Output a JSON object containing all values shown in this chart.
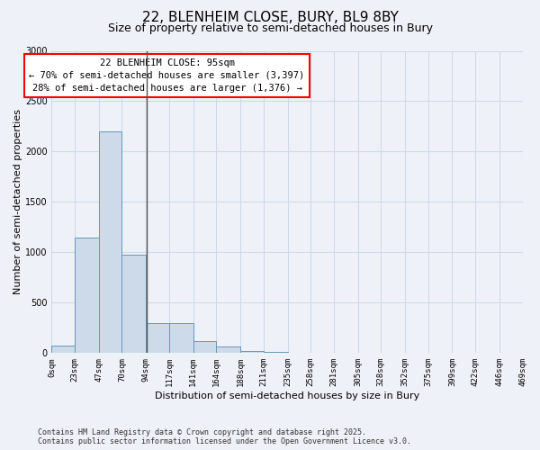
{
  "title_line1": "22, BLENHEIM CLOSE, BURY, BL9 8BY",
  "title_line2": "Size of property relative to semi-detached houses in Bury",
  "xlabel": "Distribution of semi-detached houses by size in Bury",
  "ylabel": "Number of semi-detached properties",
  "annotation_line1": "22 BLENHEIM CLOSE: 95sqm",
  "annotation_line2": "← 70% of semi-detached houses are smaller (3,397)",
  "annotation_line3": "28% of semi-detached houses are larger (1,376) →",
  "property_size": 95,
  "bin_edges": [
    0,
    23,
    47,
    70,
    94,
    117,
    141,
    164,
    188,
    211,
    235,
    258,
    281,
    305,
    328,
    352,
    375,
    399,
    422,
    446,
    469
  ],
  "bar_heights": [
    75,
    1150,
    2200,
    975,
    300,
    300,
    120,
    65,
    25,
    10,
    5,
    2,
    1,
    0,
    0,
    0,
    0,
    0,
    0,
    0
  ],
  "bar_face_color": "#ccdaea",
  "bar_edge_color": "#6699bb",
  "vline_color": "#555555",
  "grid_color": "#d0d8e8",
  "background_color": "#eef2f8",
  "plot_bg_color": "#eef2f8",
  "ylim": [
    0,
    3000
  ],
  "yticks": [
    0,
    500,
    1000,
    1500,
    2000,
    2500,
    3000
  ],
  "tick_labels": [
    "0sqm",
    "23sqm",
    "47sqm",
    "70sqm",
    "94sqm",
    "117sqm",
    "141sqm",
    "164sqm",
    "188sqm",
    "211sqm",
    "235sqm",
    "258sqm",
    "281sqm",
    "305sqm",
    "328sqm",
    "352sqm",
    "375sqm",
    "399sqm",
    "422sqm",
    "446sqm",
    "469sqm"
  ],
  "footnote_line1": "Contains HM Land Registry data © Crown copyright and database right 2025.",
  "footnote_line2": "Contains public sector information licensed under the Open Government Licence v3.0.",
  "title_fontsize": 11,
  "subtitle_fontsize": 9,
  "axis_label_fontsize": 8,
  "tick_fontsize": 6.5,
  "annotation_fontsize": 7.5,
  "footnote_fontsize": 6,
  "ylabel_fontsize": 8
}
